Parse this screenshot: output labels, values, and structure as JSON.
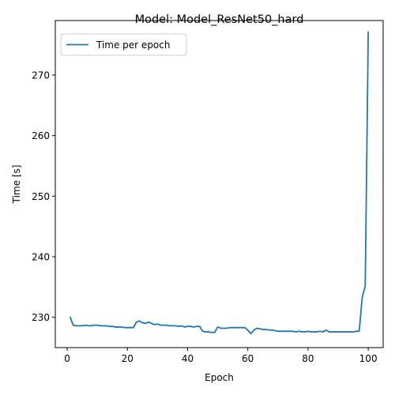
{
  "chart_data": {
    "type": "line",
    "title": "Model: Model_ResNet50_hard",
    "xlabel": "Epoch",
    "ylabel": "Time [s]",
    "xlim": [
      -3.95,
      104.95
    ],
    "ylim": [
      225.0,
      279.0
    ],
    "xticks": [
      0,
      20,
      40,
      60,
      80,
      100
    ],
    "yticks": [
      230,
      240,
      250,
      260,
      270
    ],
    "grid": false,
    "legend_position": "upper left",
    "series": [
      {
        "name": "Time per epoch",
        "color": "#1f77b4",
        "x": [
          1,
          2,
          3,
          4,
          5,
          6,
          7,
          8,
          9,
          10,
          11,
          12,
          13,
          14,
          15,
          16,
          17,
          18,
          19,
          20,
          21,
          22,
          23,
          24,
          25,
          26,
          27,
          28,
          29,
          30,
          31,
          32,
          33,
          34,
          35,
          36,
          37,
          38,
          39,
          40,
          41,
          42,
          43,
          44,
          45,
          46,
          47,
          48,
          49,
          50,
          51,
          52,
          53,
          54,
          55,
          56,
          57,
          58,
          59,
          60,
          61,
          62,
          63,
          64,
          65,
          66,
          67,
          68,
          69,
          70,
          71,
          72,
          73,
          74,
          75,
          76,
          77,
          78,
          79,
          80,
          81,
          82,
          83,
          84,
          85,
          86,
          87,
          88,
          89,
          90,
          91,
          92,
          93,
          94,
          95,
          96,
          97,
          98,
          99,
          100
        ],
        "values": [
          230.0,
          228.7,
          228.6,
          228.6,
          228.6,
          228.7,
          228.6,
          228.6,
          228.7,
          228.7,
          228.6,
          228.6,
          228.6,
          228.5,
          228.5,
          228.4,
          228.4,
          228.4,
          228.3,
          228.3,
          228.3,
          228.3,
          229.2,
          229.4,
          229.1,
          229.0,
          229.2,
          229.0,
          228.8,
          228.9,
          228.7,
          228.7,
          228.7,
          228.6,
          228.6,
          228.6,
          228.5,
          228.6,
          228.4,
          228.5,
          228.5,
          228.4,
          228.5,
          228.5,
          227.7,
          227.6,
          227.6,
          227.5,
          227.5,
          228.4,
          228.2,
          228.2,
          228.2,
          228.3,
          228.3,
          228.3,
          228.3,
          228.3,
          228.3,
          227.9,
          227.3,
          227.9,
          228.2,
          228.1,
          228.0,
          228.0,
          227.9,
          227.9,
          227.8,
          227.7,
          227.7,
          227.7,
          227.7,
          227.7,
          227.7,
          227.6,
          227.7,
          227.6,
          227.6,
          227.7,
          227.6,
          227.6,
          227.6,
          227.7,
          227.6,
          227.9,
          227.6,
          227.6,
          227.6,
          227.6,
          227.6,
          227.6,
          227.6,
          227.6,
          227.6,
          227.7,
          227.7,
          233.3,
          235.2,
          277.1
        ]
      }
    ]
  }
}
